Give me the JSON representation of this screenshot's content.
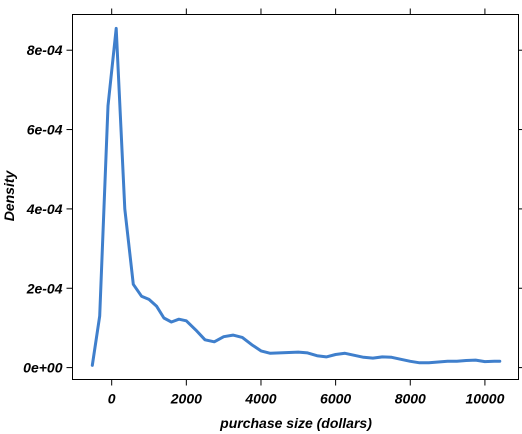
{
  "chart_data": {
    "type": "line",
    "title": "",
    "xlabel": "purchase size (dollars)",
    "ylabel": "Density",
    "xlim": [
      -1050,
      10900
    ],
    "ylim": [
      -3e-05,
      0.00089
    ],
    "x_ticks": [
      0,
      2000,
      4000,
      6000,
      8000,
      10000
    ],
    "x_tick_labels": [
      "0",
      "2000",
      "4000",
      "6000",
      "8000",
      "10000"
    ],
    "y_ticks": [
      0,
      0.0002,
      0.0004,
      0.0006,
      0.0008
    ],
    "y_tick_labels": [
      "0e+00",
      "2e-04",
      "4e-04",
      "6e-04",
      "8e-04"
    ],
    "grid": false,
    "legend": "none",
    "line_color": "#3f7fcc",
    "series": [
      {
        "x": [
          -520,
          -320,
          -100,
          120,
          350,
          580,
          800,
          1000,
          1200,
          1400,
          1600,
          1800,
          2000,
          2250,
          2500,
          2750,
          3000,
          3250,
          3500,
          3750,
          4000,
          4250,
          4500,
          4750,
          5000,
          5250,
          5500,
          5750,
          6000,
          6250,
          6500,
          6750,
          7000,
          7250,
          7500,
          7750,
          8000,
          8250,
          8500,
          8750,
          9000,
          9250,
          9500,
          9750,
          10000,
          10250,
          10400
        ],
        "y": [
          5.5e-06,
          0.00013,
          0.00066,
          0.000855,
          0.0004,
          0.00021,
          0.00018,
          0.000172,
          0.000155,
          0.000125,
          0.000115,
          0.000122,
          0.000118,
          9.5e-05,
          7e-05,
          6.5e-05,
          7.8e-05,
          8.2e-05,
          7.6e-05,
          5.8e-05,
          4.2e-05,
          3.6e-05,
          3.7e-05,
          3.8e-05,
          3.9e-05,
          3.7e-05,
          3e-05,
          2.7e-05,
          3.3e-05,
          3.6e-05,
          3.1e-05,
          2.6e-05,
          2.4e-05,
          2.7e-05,
          2.6e-05,
          2.1e-05,
          1.6e-05,
          1.2e-05,
          1.2e-05,
          1.4e-05,
          1.6e-05,
          1.6e-05,
          1.8e-05,
          1.9e-05,
          1.5e-05,
          1.6e-05,
          1.6e-05
        ]
      }
    ]
  }
}
